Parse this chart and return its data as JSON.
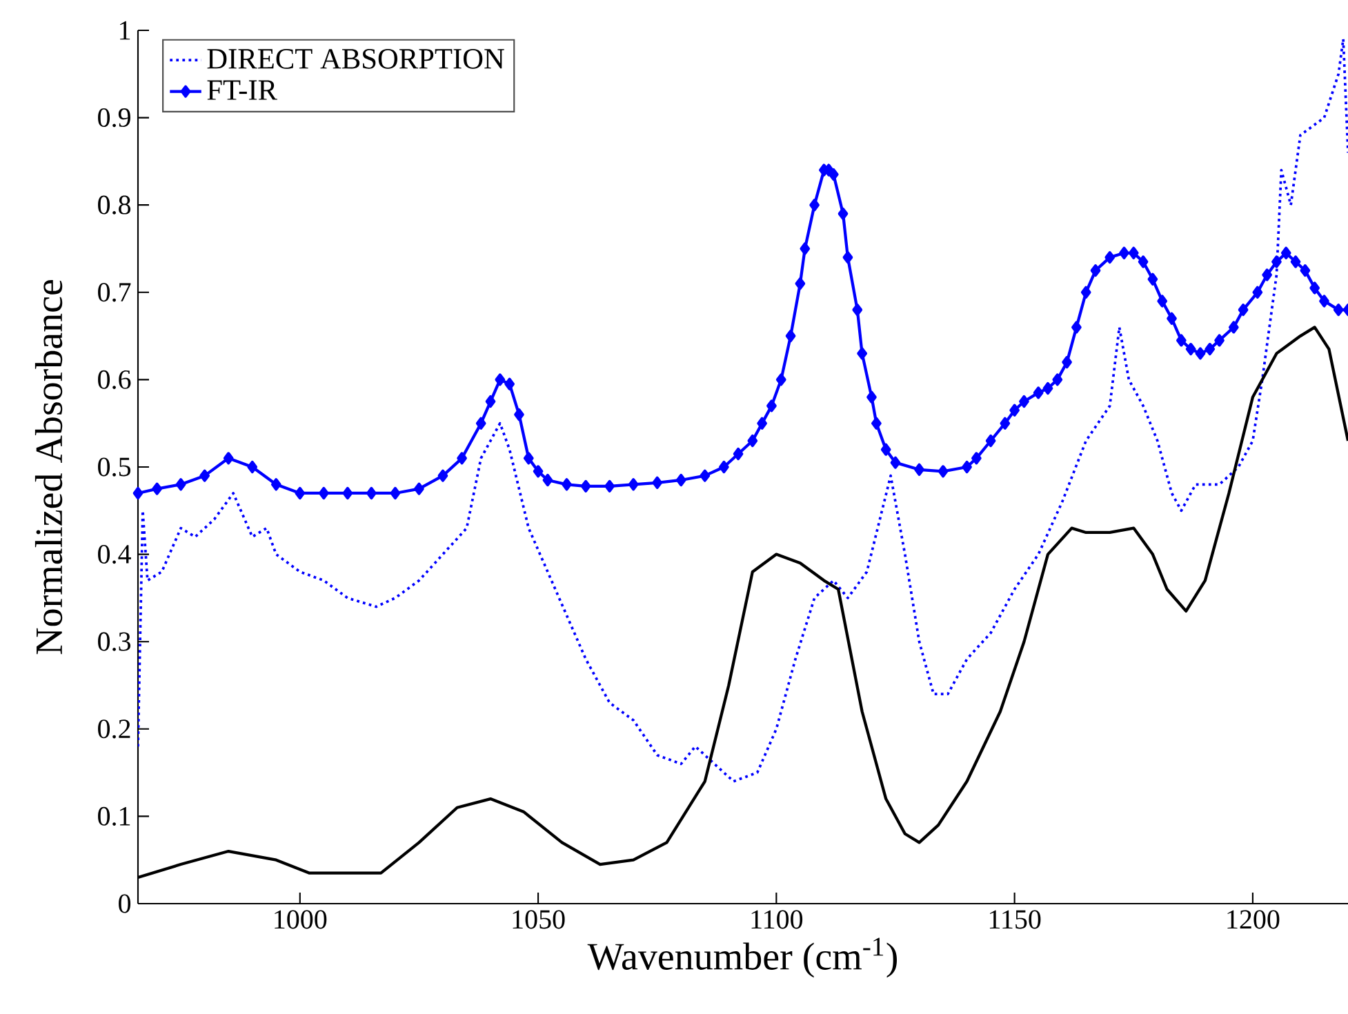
{
  "chart_data": {
    "type": "line",
    "xlabel": "Wavenumber (cm$^{-1}$)",
    "ylabel": "Normalized Absorbance",
    "xlim": [
      966,
      1220
    ],
    "ylim": [
      0,
      1
    ],
    "xticks": [
      1000,
      1050,
      1100,
      1150,
      1200
    ],
    "yticks": [
      0,
      0.1,
      0.2,
      0.3,
      0.4,
      0.5,
      0.6,
      0.7,
      0.8,
      0.9,
      1
    ],
    "legend": "top left",
    "grid": false,
    "series": [
      {
        "name": "DIRECT ABSORPTION",
        "color": "#0000ff",
        "line_style": "dotted",
        "marker": "none",
        "x": [
          966,
          967,
          968,
          971,
          975,
          978,
          982,
          986,
          990,
          993,
          995,
          1000,
          1005,
          1010,
          1016,
          1020,
          1025,
          1030,
          1035,
          1038,
          1042,
          1044,
          1048,
          1052,
          1056,
          1060,
          1065,
          1070,
          1075,
          1080,
          1083,
          1087,
          1091,
          1096,
          1100,
          1104,
          1108,
          1112,
          1115,
          1119,
          1124,
          1127,
          1130,
          1133,
          1136,
          1140,
          1145,
          1150,
          1155,
          1160,
          1165,
          1170,
          1172,
          1174,
          1177,
          1180,
          1183,
          1185,
          1188,
          1193,
          1197,
          1200,
          1202,
          1205,
          1206,
          1208,
          1210,
          1215,
          1218,
          1219,
          1220
        ],
        "values": [
          0.18,
          0.45,
          0.37,
          0.38,
          0.43,
          0.42,
          0.44,
          0.47,
          0.42,
          0.43,
          0.4,
          0.38,
          0.37,
          0.35,
          0.34,
          0.35,
          0.37,
          0.4,
          0.43,
          0.51,
          0.55,
          0.52,
          0.43,
          0.38,
          0.33,
          0.28,
          0.23,
          0.21,
          0.17,
          0.16,
          0.18,
          0.16,
          0.14,
          0.15,
          0.2,
          0.28,
          0.35,
          0.37,
          0.35,
          0.38,
          0.49,
          0.4,
          0.3,
          0.24,
          0.24,
          0.28,
          0.31,
          0.36,
          0.4,
          0.46,
          0.53,
          0.57,
          0.66,
          0.6,
          0.57,
          0.53,
          0.47,
          0.45,
          0.48,
          0.48,
          0.5,
          0.53,
          0.6,
          0.72,
          0.84,
          0.8,
          0.88,
          0.9,
          0.95,
          0.99,
          0.86
        ]
      },
      {
        "name": "FT-IR",
        "color": "#0000ff",
        "line_style": "solid",
        "marker": "diamond",
        "x": [
          966,
          970,
          975,
          980,
          985,
          990,
          995,
          1000,
          1005,
          1010,
          1015,
          1020,
          1025,
          1030,
          1034,
          1038,
          1040,
          1042,
          1044,
          1046,
          1048,
          1050,
          1052,
          1056,
          1060,
          1065,
          1070,
          1075,
          1080,
          1085,
          1089,
          1092,
          1095,
          1097,
          1099,
          1101,
          1103,
          1105,
          1106,
          1108,
          1110,
          1111,
          1112,
          1114,
          1115,
          1117,
          1118,
          1120,
          1121,
          1123,
          1125,
          1130,
          1135,
          1140,
          1142,
          1145,
          1148,
          1150,
          1152,
          1155,
          1157,
          1159,
          1161,
          1163,
          1165,
          1167,
          1170,
          1173,
          1175,
          1177,
          1179,
          1181,
          1183,
          1185,
          1187,
          1189,
          1191,
          1193,
          1196,
          1198,
          1201,
          1203,
          1205,
          1207,
          1209,
          1211,
          1213,
          1215,
          1218,
          1220
        ],
        "values": [
          0.47,
          0.475,
          0.48,
          0.49,
          0.51,
          0.5,
          0.48,
          0.47,
          0.47,
          0.47,
          0.47,
          0.47,
          0.475,
          0.49,
          0.51,
          0.55,
          0.575,
          0.6,
          0.595,
          0.56,
          0.51,
          0.495,
          0.485,
          0.48,
          0.478,
          0.478,
          0.48,
          0.482,
          0.485,
          0.49,
          0.5,
          0.515,
          0.53,
          0.55,
          0.57,
          0.6,
          0.65,
          0.71,
          0.75,
          0.8,
          0.84,
          0.84,
          0.835,
          0.79,
          0.74,
          0.68,
          0.63,
          0.58,
          0.55,
          0.52,
          0.505,
          0.497,
          0.495,
          0.5,
          0.51,
          0.53,
          0.55,
          0.565,
          0.575,
          0.585,
          0.59,
          0.6,
          0.62,
          0.66,
          0.7,
          0.725,
          0.74,
          0.745,
          0.745,
          0.735,
          0.715,
          0.69,
          0.67,
          0.645,
          0.635,
          0.63,
          0.635,
          0.645,
          0.66,
          0.68,
          0.7,
          0.72,
          0.735,
          0.745,
          0.735,
          0.725,
          0.705,
          0.69,
          0.68,
          0.68
        ]
      },
      {
        "color": "#000000",
        "line_style": "solid",
        "marker": "none",
        "x": [
          966,
          975,
          985,
          995,
          1002,
          1010,
          1017,
          1025,
          1033,
          1040,
          1047,
          1055,
          1063,
          1070,
          1077,
          1085,
          1090,
          1095,
          1100,
          1105,
          1110,
          1113,
          1118,
          1123,
          1127,
          1130,
          1134,
          1140,
          1147,
          1152,
          1157,
          1162,
          1165,
          1170,
          1175,
          1179,
          1182,
          1186,
          1190,
          1195,
          1200,
          1205,
          1210,
          1213,
          1216,
          1220
        ],
        "values": [
          0.03,
          0.045,
          0.06,
          0.05,
          0.035,
          0.035,
          0.035,
          0.07,
          0.11,
          0.12,
          0.105,
          0.07,
          0.045,
          0.05,
          0.07,
          0.14,
          0.25,
          0.38,
          0.4,
          0.39,
          0.37,
          0.36,
          0.22,
          0.12,
          0.08,
          0.07,
          0.09,
          0.14,
          0.22,
          0.3,
          0.4,
          0.43,
          0.425,
          0.425,
          0.43,
          0.4,
          0.36,
          0.335,
          0.37,
          0.47,
          0.58,
          0.63,
          0.65,
          0.66,
          0.635,
          0.53
        ]
      }
    ]
  }
}
